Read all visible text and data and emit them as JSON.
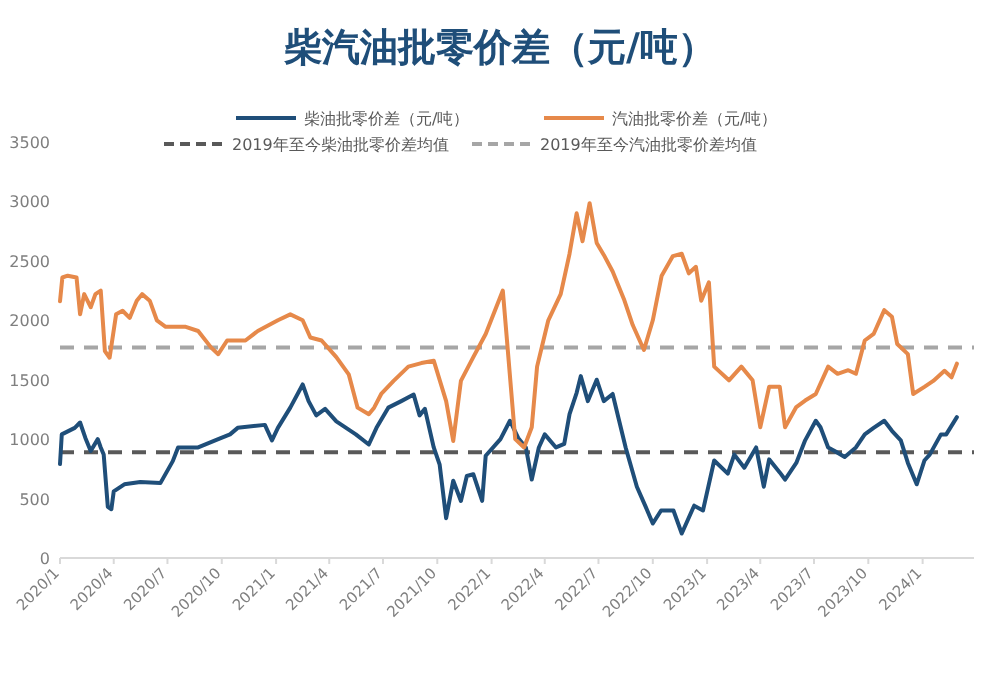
{
  "chart_data": {
    "type": "line",
    "title": "柴汽油批零价差（元/吨）",
    "legend": "top",
    "grid": false,
    "marker": "none",
    "line_style": "solid",
    "xlim": [
      "2020-01-01",
      "2024-03-28"
    ],
    "ylim": [
      0,
      3500
    ],
    "yticks": [
      0,
      500,
      1000,
      1500,
      2000,
      2500,
      3000,
      3500
    ],
    "xticks": [
      {
        "value": "2020-01-01",
        "label": "2020/1"
      },
      {
        "value": "2020-04-01",
        "label": "2020/4"
      },
      {
        "value": "2020-07-01",
        "label": "2020/7"
      },
      {
        "value": "2020-10-01",
        "label": "2020/10"
      },
      {
        "value": "2021-01-01",
        "label": "2021/1"
      },
      {
        "value": "2021-04-01",
        "label": "2021/4"
      },
      {
        "value": "2021-07-01",
        "label": "2021/7"
      },
      {
        "value": "2021-10-01",
        "label": "2021/10"
      },
      {
        "value": "2022-01-01",
        "label": "2022/1"
      },
      {
        "value": "2022-04-01",
        "label": "2022/4"
      },
      {
        "value": "2022-07-01",
        "label": "2022/7"
      },
      {
        "value": "2022-10-01",
        "label": "2022/10"
      },
      {
        "value": "2023-01-01",
        "label": "2023/1"
      },
      {
        "value": "2023-04-01",
        "label": "2023/4"
      },
      {
        "value": "2023-07-01",
        "label": "2023/7"
      },
      {
        "value": "2023-10-01",
        "label": "2023/10"
      },
      {
        "value": "2024-01-01",
        "label": "2024/1"
      }
    ],
    "series": [
      {
        "name": "柴油批零价差（元/吨）",
        "color": "#1f4e79",
        "x": [
          "2020-01-01",
          "2020-01-04",
          "2020-01-26",
          "2020-02-04",
          "2020-02-13",
          "2020-02-22",
          "2020-03-05",
          "2020-03-10",
          "2020-03-15",
          "2020-03-22",
          "2020-03-28",
          "2020-04-01",
          "2020-04-19",
          "2020-05-16",
          "2020-06-19",
          "2020-07-10",
          "2020-07-19",
          "2020-08-22",
          "2020-09-25",
          "2020-10-15",
          "2020-10-28",
          "2020-12-13",
          "2020-12-25",
          "2021-01-04",
          "2021-01-25",
          "2021-02-15",
          "2021-02-25",
          "2021-03-10",
          "2021-03-25",
          "2021-04-13",
          "2021-05-16",
          "2021-06-07",
          "2021-06-20",
          "2021-07-10",
          "2021-08-01",
          "2021-08-22",
          "2021-09-01",
          "2021-09-10",
          "2021-09-25",
          "2021-10-05",
          "2021-10-16",
          "2021-10-28",
          "2021-11-10",
          "2021-11-20",
          "2021-12-01",
          "2021-12-16",
          "2021-12-22",
          "2022-01-16",
          "2022-02-01",
          "2022-02-15",
          "2022-02-28",
          "2022-03-10",
          "2022-03-22",
          "2022-04-01",
          "2022-04-20",
          "2022-05-04",
          "2022-05-13",
          "2022-05-25",
          "2022-06-01",
          "2022-06-13",
          "2022-06-28",
          "2022-07-10",
          "2022-07-25",
          "2022-08-05",
          "2022-08-16",
          "2022-09-04",
          "2022-09-19",
          "2022-10-01",
          "2022-10-15",
          "2022-11-05",
          "2022-11-19",
          "2022-12-10",
          "2022-12-25",
          "2023-01-13",
          "2023-02-05",
          "2023-02-16",
          "2023-03-05",
          "2023-03-25",
          "2023-04-07",
          "2023-04-16",
          "2023-05-04",
          "2023-05-13",
          "2023-06-01",
          "2023-06-16",
          "2023-07-04",
          "2023-07-12",
          "2023-07-25",
          "2023-08-05",
          "2023-08-22",
          "2023-09-10",
          "2023-09-25",
          "2023-10-10",
          "2023-10-28",
          "2023-11-10",
          "2023-11-25",
          "2023-12-07",
          "2023-12-22",
          "2024-01-04",
          "2024-01-13",
          "2024-02-01",
          "2024-02-10",
          "2024-02-28"
        ],
        "values": [
          790,
          1040,
          1095,
          1140,
          1010,
          900,
          1000,
          930,
          870,
          430,
          410,
          560,
          620,
          640,
          630,
          815,
          930,
          930,
          1000,
          1040,
          1095,
          1120,
          990,
          1095,
          1265,
          1460,
          1320,
          1200,
          1255,
          1150,
          1040,
          955,
          1095,
          1265,
          1320,
          1375,
          1200,
          1255,
          930,
          785,
          335,
          650,
          480,
          690,
          705,
          480,
          860,
          1000,
          1155,
          1010,
          930,
          660,
          930,
          1040,
          930,
          960,
          1210,
          1390,
          1530,
          1320,
          1500,
          1320,
          1380,
          1155,
          930,
          600,
          430,
          290,
          400,
          400,
          206,
          440,
          400,
          820,
          710,
          870,
          760,
          930,
          600,
          830,
          720,
          660,
          800,
          990,
          1155,
          1100,
          930,
          900,
          850,
          930,
          1040,
          1095,
          1155,
          1070,
          990,
          800,
          620,
          820,
          870,
          1040,
          1040,
          1185
        ]
      },
      {
        "name": "汽油批零价差（元/吨）",
        "color": "#e6894a",
        "x": [
          "2020-01-01",
          "2020-01-05",
          "2020-01-14",
          "2020-01-29",
          "2020-02-04",
          "2020-02-11",
          "2020-02-22",
          "2020-03-01",
          "2020-03-10",
          "2020-03-17",
          "2020-03-25",
          "2020-04-05",
          "2020-04-16",
          "2020-04-28",
          "2020-05-10",
          "2020-05-19",
          "2020-06-01",
          "2020-06-13",
          "2020-06-28",
          "2020-08-01",
          "2020-08-22",
          "2020-09-13",
          "2020-09-25",
          "2020-10-10",
          "2020-11-10",
          "2020-12-01",
          "2021-01-04",
          "2021-01-25",
          "2021-02-15",
          "2021-02-28",
          "2021-03-19",
          "2021-04-13",
          "2021-05-04",
          "2021-05-19",
          "2021-06-07",
          "2021-06-16",
          "2021-06-28",
          "2021-07-19",
          "2021-08-13",
          "2021-09-04",
          "2021-09-25",
          "2021-10-16",
          "2021-10-28",
          "2021-11-10",
          "2021-12-01",
          "2021-12-22",
          "2022-01-20",
          "2022-02-10",
          "2022-02-25",
          "2022-03-10",
          "2022-03-19",
          "2022-04-07",
          "2022-04-28",
          "2022-05-13",
          "2022-05-25",
          "2022-06-04",
          "2022-06-16",
          "2022-06-28",
          "2022-07-10",
          "2022-07-25",
          "2022-08-13",
          "2022-08-28",
          "2022-09-16",
          "2022-10-01",
          "2022-10-16",
          "2022-11-04",
          "2022-11-19",
          "2022-12-01",
          "2022-12-13",
          "2022-12-22",
          "2023-01-04",
          "2023-01-13",
          "2023-02-07",
          "2023-02-28",
          "2023-03-19",
          "2023-04-01",
          "2023-04-16",
          "2023-05-04",
          "2023-05-13",
          "2023-06-01",
          "2023-06-16",
          "2023-07-04",
          "2023-07-25",
          "2023-08-10",
          "2023-08-28",
          "2023-09-10",
          "2023-09-25",
          "2023-10-10",
          "2023-10-28",
          "2023-11-10",
          "2023-11-19",
          "2023-12-07",
          "2023-12-16",
          "2024-01-04",
          "2024-01-19",
          "2024-02-07",
          "2024-02-19",
          "2024-02-28"
        ],
        "values": [
          2160,
          2360,
          2375,
          2360,
          2050,
          2220,
          2110,
          2220,
          2250,
          1740,
          1685,
          2050,
          2080,
          2020,
          2165,
          2220,
          2165,
          2000,
          1945,
          1945,
          1910,
          1770,
          1715,
          1830,
          1830,
          1910,
          2000,
          2050,
          2000,
          1855,
          1830,
          1690,
          1545,
          1265,
          1210,
          1265,
          1380,
          1490,
          1610,
          1640,
          1660,
          1320,
          985,
          1490,
          1690,
          1885,
          2250,
          1000,
          930,
          1100,
          1610,
          2000,
          2220,
          2560,
          2900,
          2665,
          2985,
          2650,
          2550,
          2410,
          2180,
          1960,
          1750,
          2000,
          2375,
          2540,
          2560,
          2395,
          2450,
          2165,
          2320,
          1610,
          1495,
          1610,
          1495,
          1100,
          1440,
          1440,
          1100,
          1270,
          1325,
          1380,
          1610,
          1550,
          1580,
          1550,
          1830,
          1885,
          2085,
          2030,
          1800,
          1715,
          1380,
          1440,
          1490,
          1575,
          1520,
          1635
        ]
      }
    ],
    "ref_lines": [
      {
        "axis": "y",
        "value": 890,
        "label": "2019年至今柴油批零价差均值",
        "color": "#595959",
        "line_style": "dashed"
      },
      {
        "axis": "y",
        "value": 1770,
        "label": "2019年至今汽油批零价差均值",
        "color": "#a6a6a6",
        "line_style": "dashed"
      }
    ]
  }
}
